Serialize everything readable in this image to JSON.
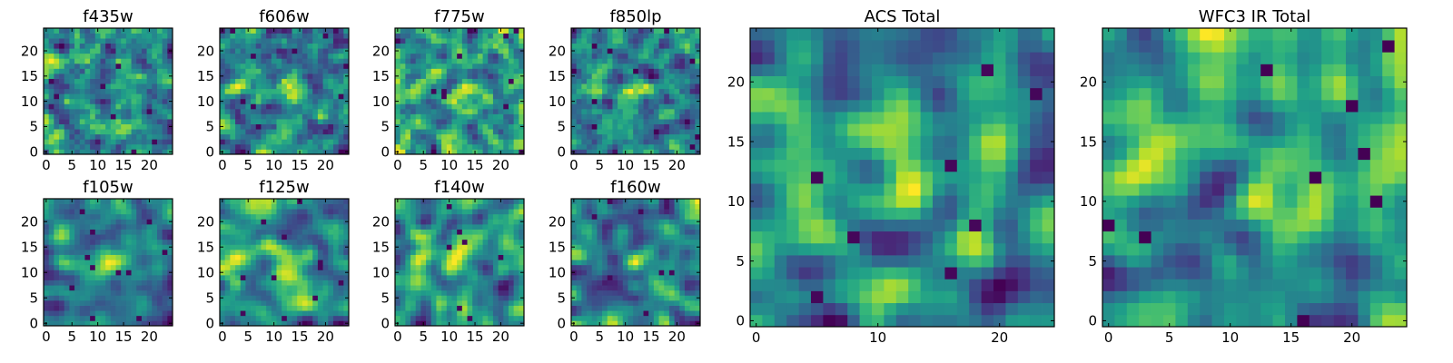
{
  "chart_data": [
    {
      "type": "heatmap",
      "title": "f435w",
      "grid_size": 25,
      "xticks": [
        0,
        5,
        10,
        15,
        20
      ],
      "yticks": [
        0,
        5,
        10,
        15,
        20
      ],
      "xlim": [
        -0.5,
        24.5
      ],
      "ylim": [
        -0.5,
        24.5
      ],
      "colormap": "viridis",
      "seed": 11,
      "smoothness": 0.25,
      "hotspots": []
    },
    {
      "type": "heatmap",
      "title": "f606w",
      "grid_size": 25,
      "xticks": [
        0,
        5,
        10,
        15,
        20
      ],
      "yticks": [
        0,
        5,
        10,
        15,
        20
      ],
      "xlim": [
        -0.5,
        24.5
      ],
      "ylim": [
        -0.5,
        24.5
      ],
      "colormap": "viridis",
      "seed": 23,
      "smoothness": 0.45,
      "hotspots": [
        [
          3,
          13
        ],
        [
          13,
          12
        ]
      ]
    },
    {
      "type": "heatmap",
      "title": "f775w",
      "grid_size": 25,
      "xticks": [
        0,
        5,
        10,
        15,
        20
      ],
      "yticks": [
        0,
        5,
        10,
        15,
        20
      ],
      "xlim": [
        -0.5,
        24.5
      ],
      "ylim": [
        -0.5,
        24.5
      ],
      "colormap": "viridis",
      "seed": 37,
      "smoothness": 0.45,
      "hotspots": [
        [
          3,
          12
        ],
        [
          13,
          12
        ]
      ]
    },
    {
      "type": "heatmap",
      "title": "f850lp",
      "grid_size": 25,
      "xticks": [
        0,
        5,
        10,
        15,
        20
      ],
      "yticks": [
        0,
        5,
        10,
        15,
        20
      ],
      "xlim": [
        -0.5,
        24.5
      ],
      "ylim": [
        -0.5,
        24.5
      ],
      "colormap": "viridis",
      "seed": 41,
      "smoothness": 0.45,
      "hotspots": [
        [
          4,
          12
        ],
        [
          13,
          12
        ]
      ]
    },
    {
      "type": "heatmap",
      "title": "f105w",
      "grid_size": 25,
      "xticks": [
        0,
        5,
        10,
        15,
        20
      ],
      "yticks": [
        0,
        5,
        10,
        15,
        20
      ],
      "xlim": [
        -0.5,
        24.5
      ],
      "ylim": [
        -0.5,
        24.5
      ],
      "colormap": "viridis",
      "seed": 53,
      "smoothness": 0.75,
      "hotspots": [
        [
          3,
          12
        ],
        [
          12,
          12
        ]
      ]
    },
    {
      "type": "heatmap",
      "title": "f125w",
      "grid_size": 25,
      "xticks": [
        0,
        5,
        10,
        15,
        20
      ],
      "yticks": [
        0,
        5,
        10,
        15,
        20
      ],
      "xlim": [
        -0.5,
        24.5
      ],
      "ylim": [
        -0.5,
        24.5
      ],
      "colormap": "viridis",
      "seed": 61,
      "smoothness": 0.75,
      "hotspots": [
        [
          3,
          12
        ],
        [
          12,
          12
        ]
      ]
    },
    {
      "type": "heatmap",
      "title": "f140w",
      "grid_size": 25,
      "xticks": [
        0,
        5,
        10,
        15,
        20
      ],
      "yticks": [
        0,
        5,
        10,
        15,
        20
      ],
      "xlim": [
        -0.5,
        24.5
      ],
      "ylim": [
        -0.5,
        24.5
      ],
      "colormap": "viridis",
      "seed": 71,
      "smoothness": 0.75,
      "hotspots": [
        [
          3,
          12
        ],
        [
          12,
          12
        ]
      ]
    },
    {
      "type": "heatmap",
      "title": "f160w",
      "grid_size": 25,
      "xticks": [
        0,
        5,
        10,
        15,
        20
      ],
      "yticks": [
        0,
        5,
        10,
        15,
        20
      ],
      "xlim": [
        -0.5,
        24.5
      ],
      "ylim": [
        -0.5,
        24.5
      ],
      "colormap": "viridis",
      "seed": 83,
      "smoothness": 0.75,
      "hotspots": [
        [
          12,
          12
        ]
      ]
    },
    {
      "type": "heatmap",
      "title": "ACS Total",
      "grid_size": 25,
      "xticks": [
        0,
        10,
        20
      ],
      "yticks": [
        0,
        5,
        10,
        15,
        20
      ],
      "xlim": [
        -0.5,
        24.5
      ],
      "ylim": [
        -0.5,
        24.5
      ],
      "colormap": "viridis",
      "seed": 97,
      "smoothness": 0.5,
      "hotspots": [
        [
          3,
          11
        ],
        [
          13,
          11
        ]
      ]
    },
    {
      "type": "heatmap",
      "title": "WFC3 IR Total",
      "grid_size": 25,
      "xticks": [
        0,
        5,
        10,
        15,
        20
      ],
      "yticks": [
        0,
        5,
        10,
        15,
        20
      ],
      "xlim": [
        -0.5,
        24.5
      ],
      "ylim": [
        -0.5,
        24.5
      ],
      "colormap": "viridis",
      "seed": 101,
      "smoothness": 0.8,
      "hotspots": [
        [
          3,
          12
        ],
        [
          12,
          12
        ]
      ]
    }
  ]
}
